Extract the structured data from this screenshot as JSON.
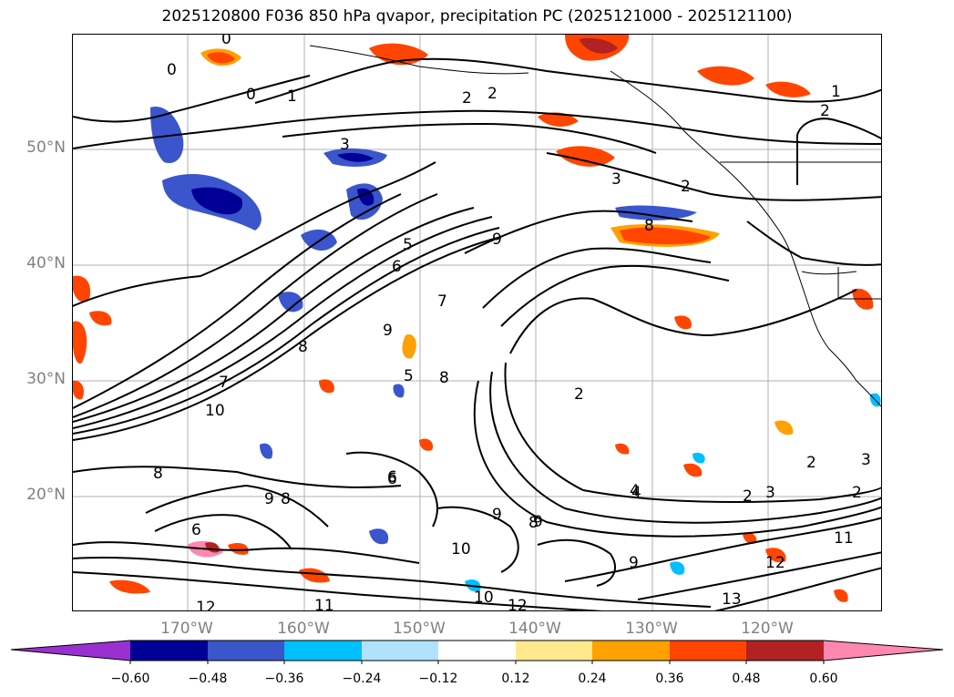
{
  "title": "2025120800 F036 850 hPa qvapor, precipitation PC (2025121000 - 2025121100)",
  "map": {
    "lat_labels": [
      "50°N",
      "40°N",
      "30°N",
      "20°N"
    ],
    "lon_labels": [
      "170°W",
      "160°W",
      "150°W",
      "140°W",
      "130°W",
      "120°W"
    ],
    "contour_labels": [
      "0",
      "0",
      "0",
      "1",
      "2",
      "2",
      "2",
      "1",
      "2",
      "3",
      "3",
      "2",
      "4",
      "5",
      "6",
      "9",
      "7",
      "8",
      "8",
      "9",
      "7",
      "10",
      "2",
      "8",
      "9",
      "8",
      "6",
      "4",
      "2",
      "3",
      "3",
      "2",
      "11",
      "12",
      "13",
      "9",
      "10",
      "10",
      "12",
      "11",
      "12",
      "5",
      "6",
      "8",
      "9",
      "8",
      "9",
      "6"
    ]
  },
  "colorbar": {
    "tick_labels": [
      "−0.60",
      "−0.48",
      "−0.36",
      "−0.24",
      "−0.12",
      "0.12",
      "0.24",
      "0.36",
      "0.48",
      "0.60"
    ],
    "colors": {
      "under": "#9b30d0",
      "bins": [
        "#000096",
        "#3b55cc",
        "#00bfff",
        "#b0e2ff",
        "#ffffff",
        "#ffe98c",
        "#ffa100",
        "#ff4500",
        "#b22222"
      ],
      "over": "#ff88b0"
    }
  }
}
